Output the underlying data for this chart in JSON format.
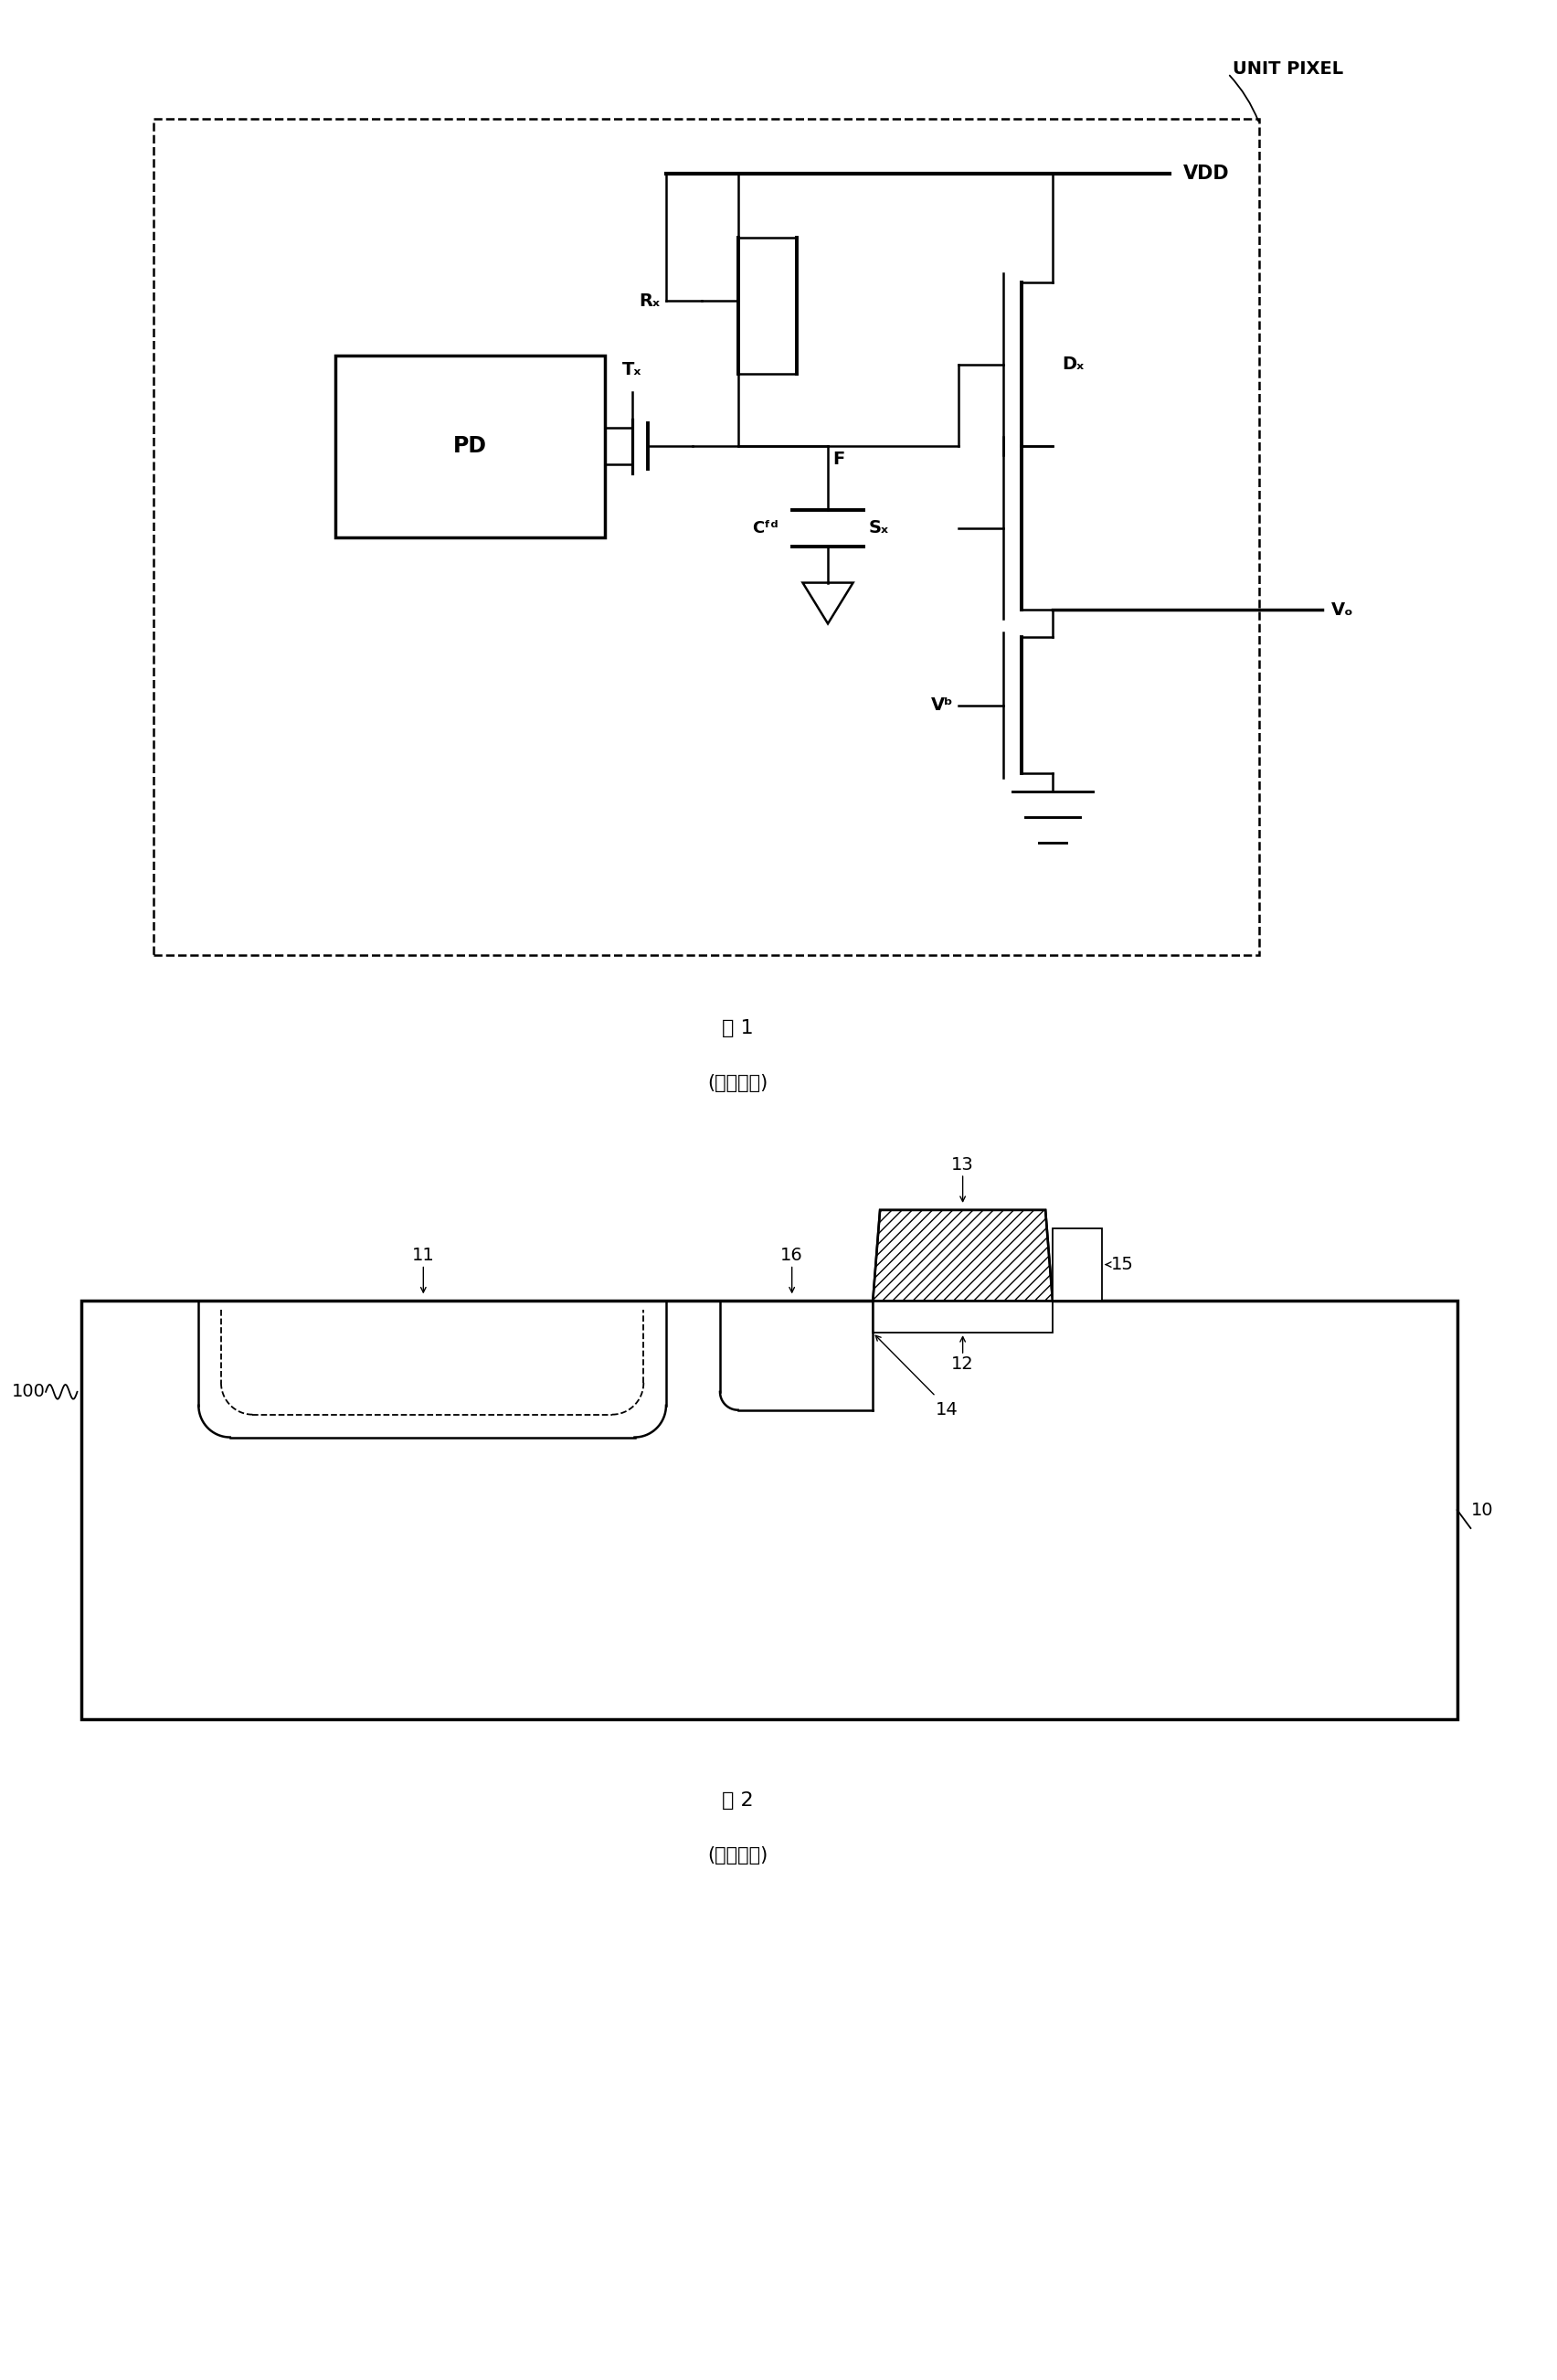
{
  "bg_color": "#ffffff",
  "fig_width": 17.04,
  "fig_height": 26.04,
  "fig1_label": "图 1",
  "fig1_sublabel": "(现有技术)",
  "fig2_label": "图 2",
  "fig2_sublabel": "(现有技术)",
  "unit_pixel_label": "UNIT PIXEL",
  "VDD_label": "VDD",
  "Vo_label": "Vₒ",
  "Vb_label": "Vᵇ",
  "Tx_label": "Tₓ",
  "Rx_label": "Rₓ",
  "Sx_label": "Sₓ",
  "Dx_label": "Dₓ",
  "F_label": "F",
  "Cfd_label": "Cᶠᵈ",
  "PD_label": "PD"
}
